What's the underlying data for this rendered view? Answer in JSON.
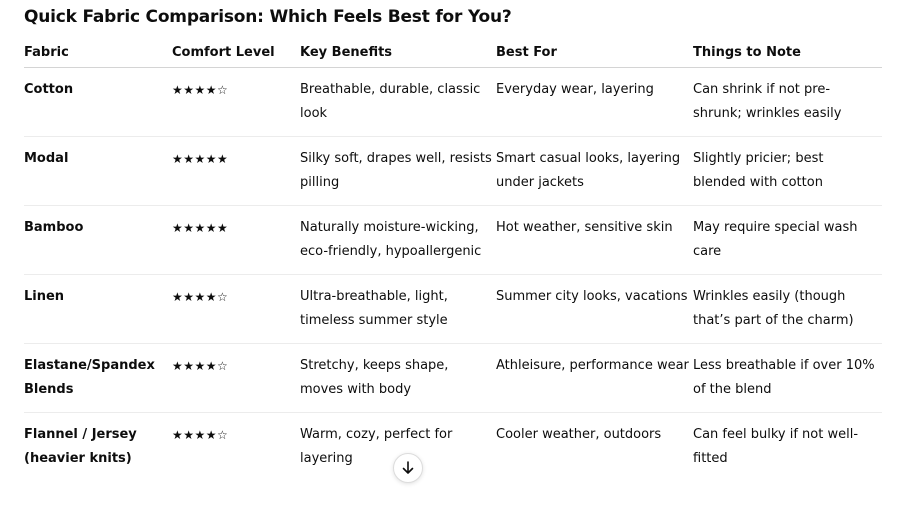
{
  "title": "Quick Fabric Comparison: Which Feels Best for You?",
  "columns": [
    "Fabric",
    "Comfort Level",
    "Key Benefits",
    "Best For",
    "Things to Note"
  ],
  "rows": [
    {
      "fabric": "Cotton",
      "comfort": "★★★★☆",
      "benefits": "Breathable, durable, classic look",
      "best_for": "Everyday wear, layering",
      "note": "Can shrink if not pre-shrunk; wrinkles easily"
    },
    {
      "fabric": "Modal",
      "comfort": "★★★★★",
      "benefits": "Silky soft, drapes well, resists pilling",
      "best_for": "Smart casual looks, layering under jackets",
      "note": "Slightly pricier; best blended with cotton"
    },
    {
      "fabric": "Bamboo",
      "comfort": "★★★★★",
      "benefits": "Naturally moisture-wicking, eco-friendly, hypoallergenic",
      "best_for": "Hot weather, sensitive skin",
      "note": "May require special wash care"
    },
    {
      "fabric": "Linen",
      "comfort": "★★★★☆",
      "benefits": "Ultra-breathable, light, timeless summer style",
      "best_for": "Summer city looks, vacations",
      "note": "Wrinkles easily (though that’s part of the charm)"
    },
    {
      "fabric": "Elastane/Spandex Blends",
      "comfort": "★★★★☆",
      "benefits": "Stretchy, keeps shape, moves with body",
      "best_for": "Athleisure, performance wear",
      "note": "Less breathable if over 10% of the blend"
    },
    {
      "fabric": "Flannel / Jersey (heavier knits)",
      "comfort": "★★★★☆",
      "benefits": "Warm, cozy, perfect for layering",
      "best_for": "Cooler weather, outdoors",
      "note": "Can feel bulky if not well-fitted"
    }
  ],
  "scroll_button": {
    "icon": "arrow-down-icon"
  }
}
